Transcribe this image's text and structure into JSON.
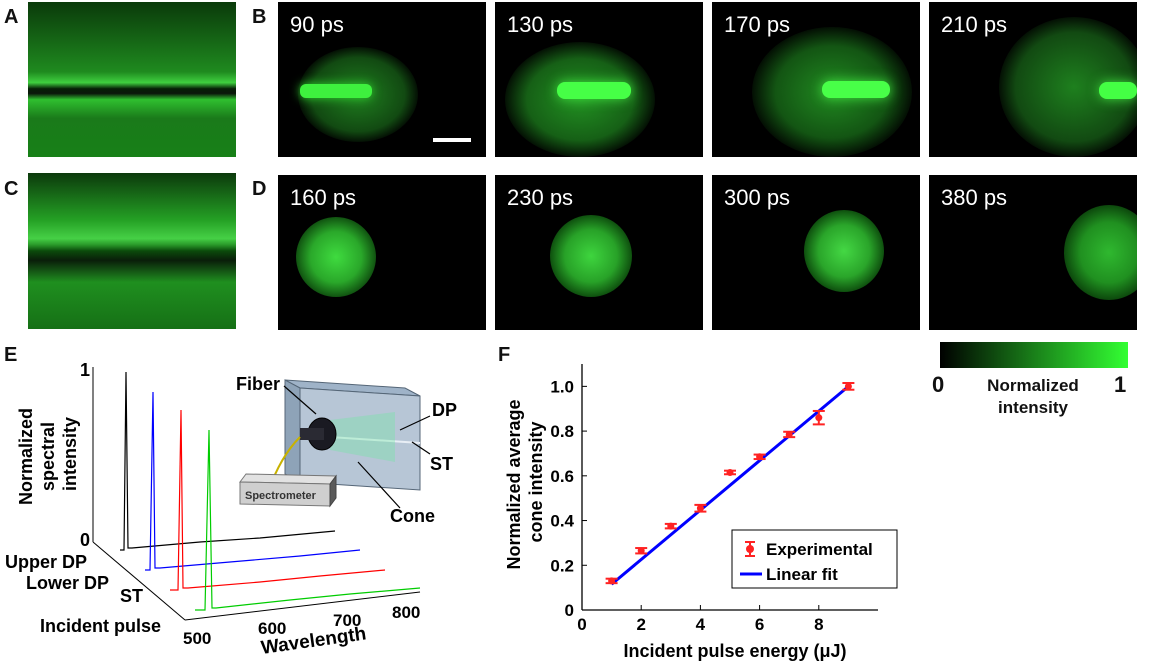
{
  "panel_labels": {
    "A": "A",
    "B": "B",
    "C": "C",
    "D": "D",
    "E": "E",
    "F": "F"
  },
  "row_b_times": [
    "90 ps",
    "130 ps",
    "170 ps",
    "210 ps"
  ],
  "row_d_times": [
    "160 ps",
    "230 ps",
    "300 ps",
    "380 ps"
  ],
  "colorbar": {
    "min_label": "0",
    "max_label": "1",
    "title": "Normalized intensity",
    "color_low": "#000000",
    "color_high": "#33ff33"
  },
  "panel_e": {
    "ylabel": "Normalized spectral intensity",
    "ytick_top": "1",
    "ytick_bottom": "0",
    "series_labels": [
      "Upper DP",
      "Lower DP",
      "ST",
      "Incident pulse"
    ],
    "xticks": [
      "500",
      "600",
      "700",
      "800"
    ],
    "xlabel": "Wavelength",
    "series_colors": [
      "#000000",
      "#0000ff",
      "#ff0000",
      "#00cc00"
    ],
    "inset": {
      "fiber": "Fiber",
      "dp": "DP",
      "st": "ST",
      "cone": "Cone",
      "spectrometer": "Spectrometer"
    }
  },
  "chart_data": {
    "type": "scatter",
    "title": "",
    "xlabel": "Incident pulse energy (μJ)",
    "ylabel": "Normalized average cone intensity",
    "xlim": [
      0,
      10
    ],
    "ylim": [
      0,
      1.1
    ],
    "xticks": [
      0,
      2,
      4,
      6,
      8
    ],
    "yticks": [
      0,
      0.2,
      0.4,
      0.6,
      0.8,
      1.0
    ],
    "ytick_labels": [
      "0",
      "0.2",
      "0.4",
      "0.6",
      "0.8",
      "1.0"
    ],
    "legend_position": "bottom-right",
    "series": [
      {
        "name": "Experimental",
        "color": "#ff2222",
        "x": [
          1,
          2,
          3,
          4,
          5,
          6,
          7,
          8,
          9
        ],
        "y": [
          0.13,
          0.265,
          0.375,
          0.455,
          0.615,
          0.685,
          0.785,
          0.86,
          1.0
        ],
        "err": [
          0.01,
          0.012,
          0.01,
          0.015,
          0.008,
          0.01,
          0.012,
          0.03,
          0.015
        ]
      },
      {
        "name": "Linear fit",
        "color": "#0000ff",
        "x": [
          1,
          9
        ],
        "y": [
          0.115,
          1.0
        ]
      }
    ]
  }
}
